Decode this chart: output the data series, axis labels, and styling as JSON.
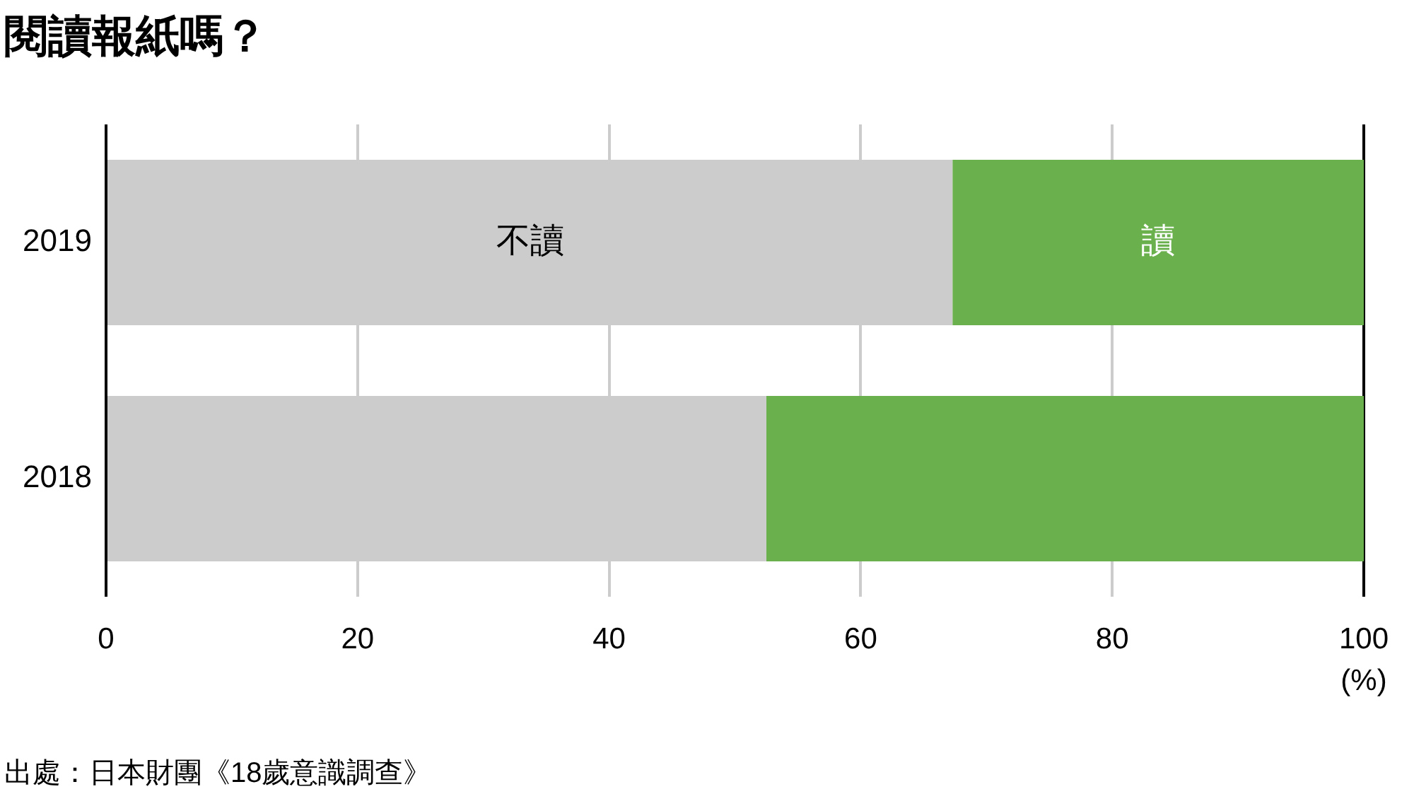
{
  "chart_data": {
    "type": "bar",
    "orientation": "horizontal",
    "stacked": true,
    "title": "閱讀報紙嗎？",
    "xlabel": "(%)",
    "categories": [
      "2019",
      "2018"
    ],
    "series": [
      {
        "name": "不讀",
        "color": "#cccccc",
        "values": [
          67.3,
          52.5
        ]
      },
      {
        "name": "讀",
        "color": "#6ab04c",
        "values": [
          32.7,
          47.5
        ]
      }
    ],
    "xlim": [
      0,
      100
    ],
    "xticks": [
      0,
      20,
      40,
      60,
      80,
      100
    ],
    "grid": "x",
    "annotations": [
      "出處：日本財團《18歲意識調查》"
    ]
  }
}
